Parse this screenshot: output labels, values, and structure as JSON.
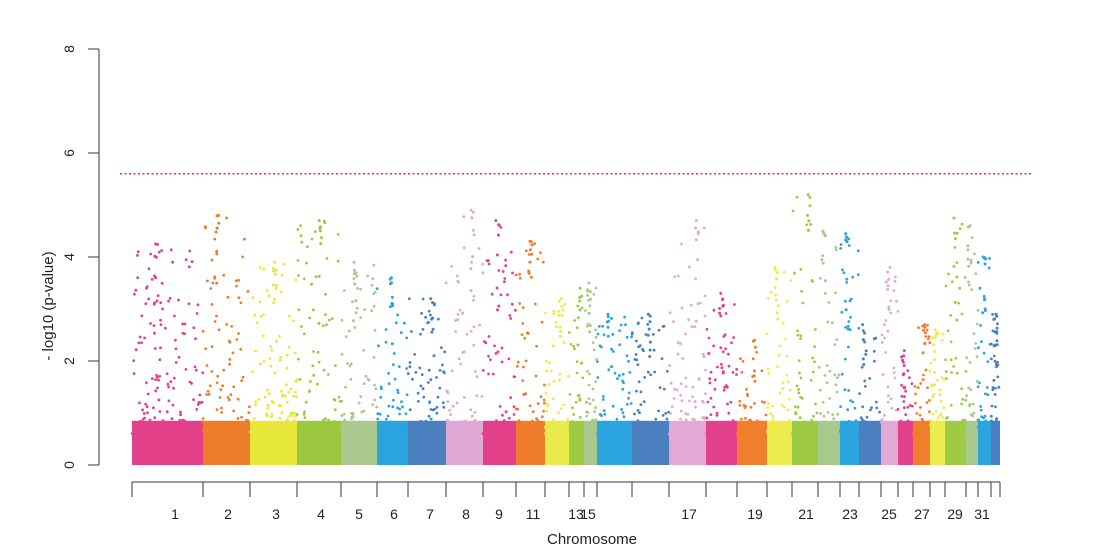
{
  "chart_data": {
    "type": "scatter",
    "subtype": "manhattan",
    "title": "",
    "xlabel": "Chromosome",
    "ylabel": "- log10 (p-value)",
    "ylim": [
      0,
      8
    ],
    "yticks": [
      0,
      2,
      4,
      6,
      8
    ],
    "threshold": {
      "value": 5.6,
      "color": "#e0322d",
      "style": "dotted"
    },
    "grid": false,
    "legend": "none",
    "x_tick_labels": [
      "1",
      "2",
      "3",
      "4",
      "5",
      "6",
      "7",
      "8",
      "9",
      "11",
      "13",
      "15",
      "17",
      "19",
      "21",
      "23",
      "25",
      "27",
      "29",
      "31"
    ],
    "chromosomes": [
      {
        "chr": "1",
        "color": "#e2418a",
        "peak": 4.25
      },
      {
        "chr": "2",
        "color": "#ee7d2a",
        "peak": 4.8
      },
      {
        "chr": "3",
        "color": "#e7e83a",
        "peak": 3.9
      },
      {
        "chr": "4",
        "color": "#9cc83f",
        "peak": 4.7
      },
      {
        "chr": "5",
        "color": "#a9c98e",
        "peak": 3.9
      },
      {
        "chr": "6",
        "color": "#2ba3df",
        "peak": 3.6
      },
      {
        "chr": "7",
        "color": "#4a7fc0",
        "peak": 3.2
      },
      {
        "chr": "8",
        "color": "#e0a8d4",
        "peak": 4.9
      },
      {
        "chr": "9",
        "color": "#e2418a",
        "peak": 4.7
      },
      {
        "chr": "10",
        "color": "#ef7d2c",
        "peak": 4.3
      },
      {
        "chr": "11",
        "color": "#eaea4a",
        "peak": 3.2
      },
      {
        "chr": "12",
        "color": "#9fca44",
        "peak": 3.4
      },
      {
        "chr": "13",
        "color": "#a8c98b",
        "peak": 3.5
      },
      {
        "chr": "14",
        "color": "#2ba4df",
        "peak": 2.9
      },
      {
        "chr": "15",
        "color": "#4a7fc0",
        "peak": 2.9
      },
      {
        "chr": "16",
        "color": "#e3a9d6",
        "peak": 4.7
      },
      {
        "chr": "17",
        "color": "#e3418c",
        "peak": 3.3
      },
      {
        "chr": "18",
        "color": "#ef7e2d",
        "peak": 2.4
      },
      {
        "chr": "19",
        "color": "#ecec4c",
        "peak": 3.8
      },
      {
        "chr": "20",
        "color": "#9fca44",
        "peak": 5.2
      },
      {
        "chr": "21",
        "color": "#a8c98c",
        "peak": 4.5
      },
      {
        "chr": "22",
        "color": "#2ba4df",
        "peak": 4.45
      },
      {
        "chr": "23",
        "color": "#4a7fc0",
        "peak": 2.7
      },
      {
        "chr": "24",
        "color": "#e3a9d6",
        "peak": 3.8
      },
      {
        "chr": "25",
        "color": "#e3418c",
        "peak": 2.2
      },
      {
        "chr": "26",
        "color": "#ef7e2d",
        "peak": 2.7
      },
      {
        "chr": "27",
        "color": "#ecec4c",
        "peak": 2.6
      },
      {
        "chr": "28",
        "color": "#9fca44",
        "peak": 4.75
      },
      {
        "chr": "29",
        "color": "#a8c98c",
        "peak": 4.6
      },
      {
        "chr": "30",
        "color": "#2ba4df",
        "peak": 4.0
      },
      {
        "chr": "31",
        "color": "#4a7fc0",
        "peak": 2.9
      }
    ]
  }
}
